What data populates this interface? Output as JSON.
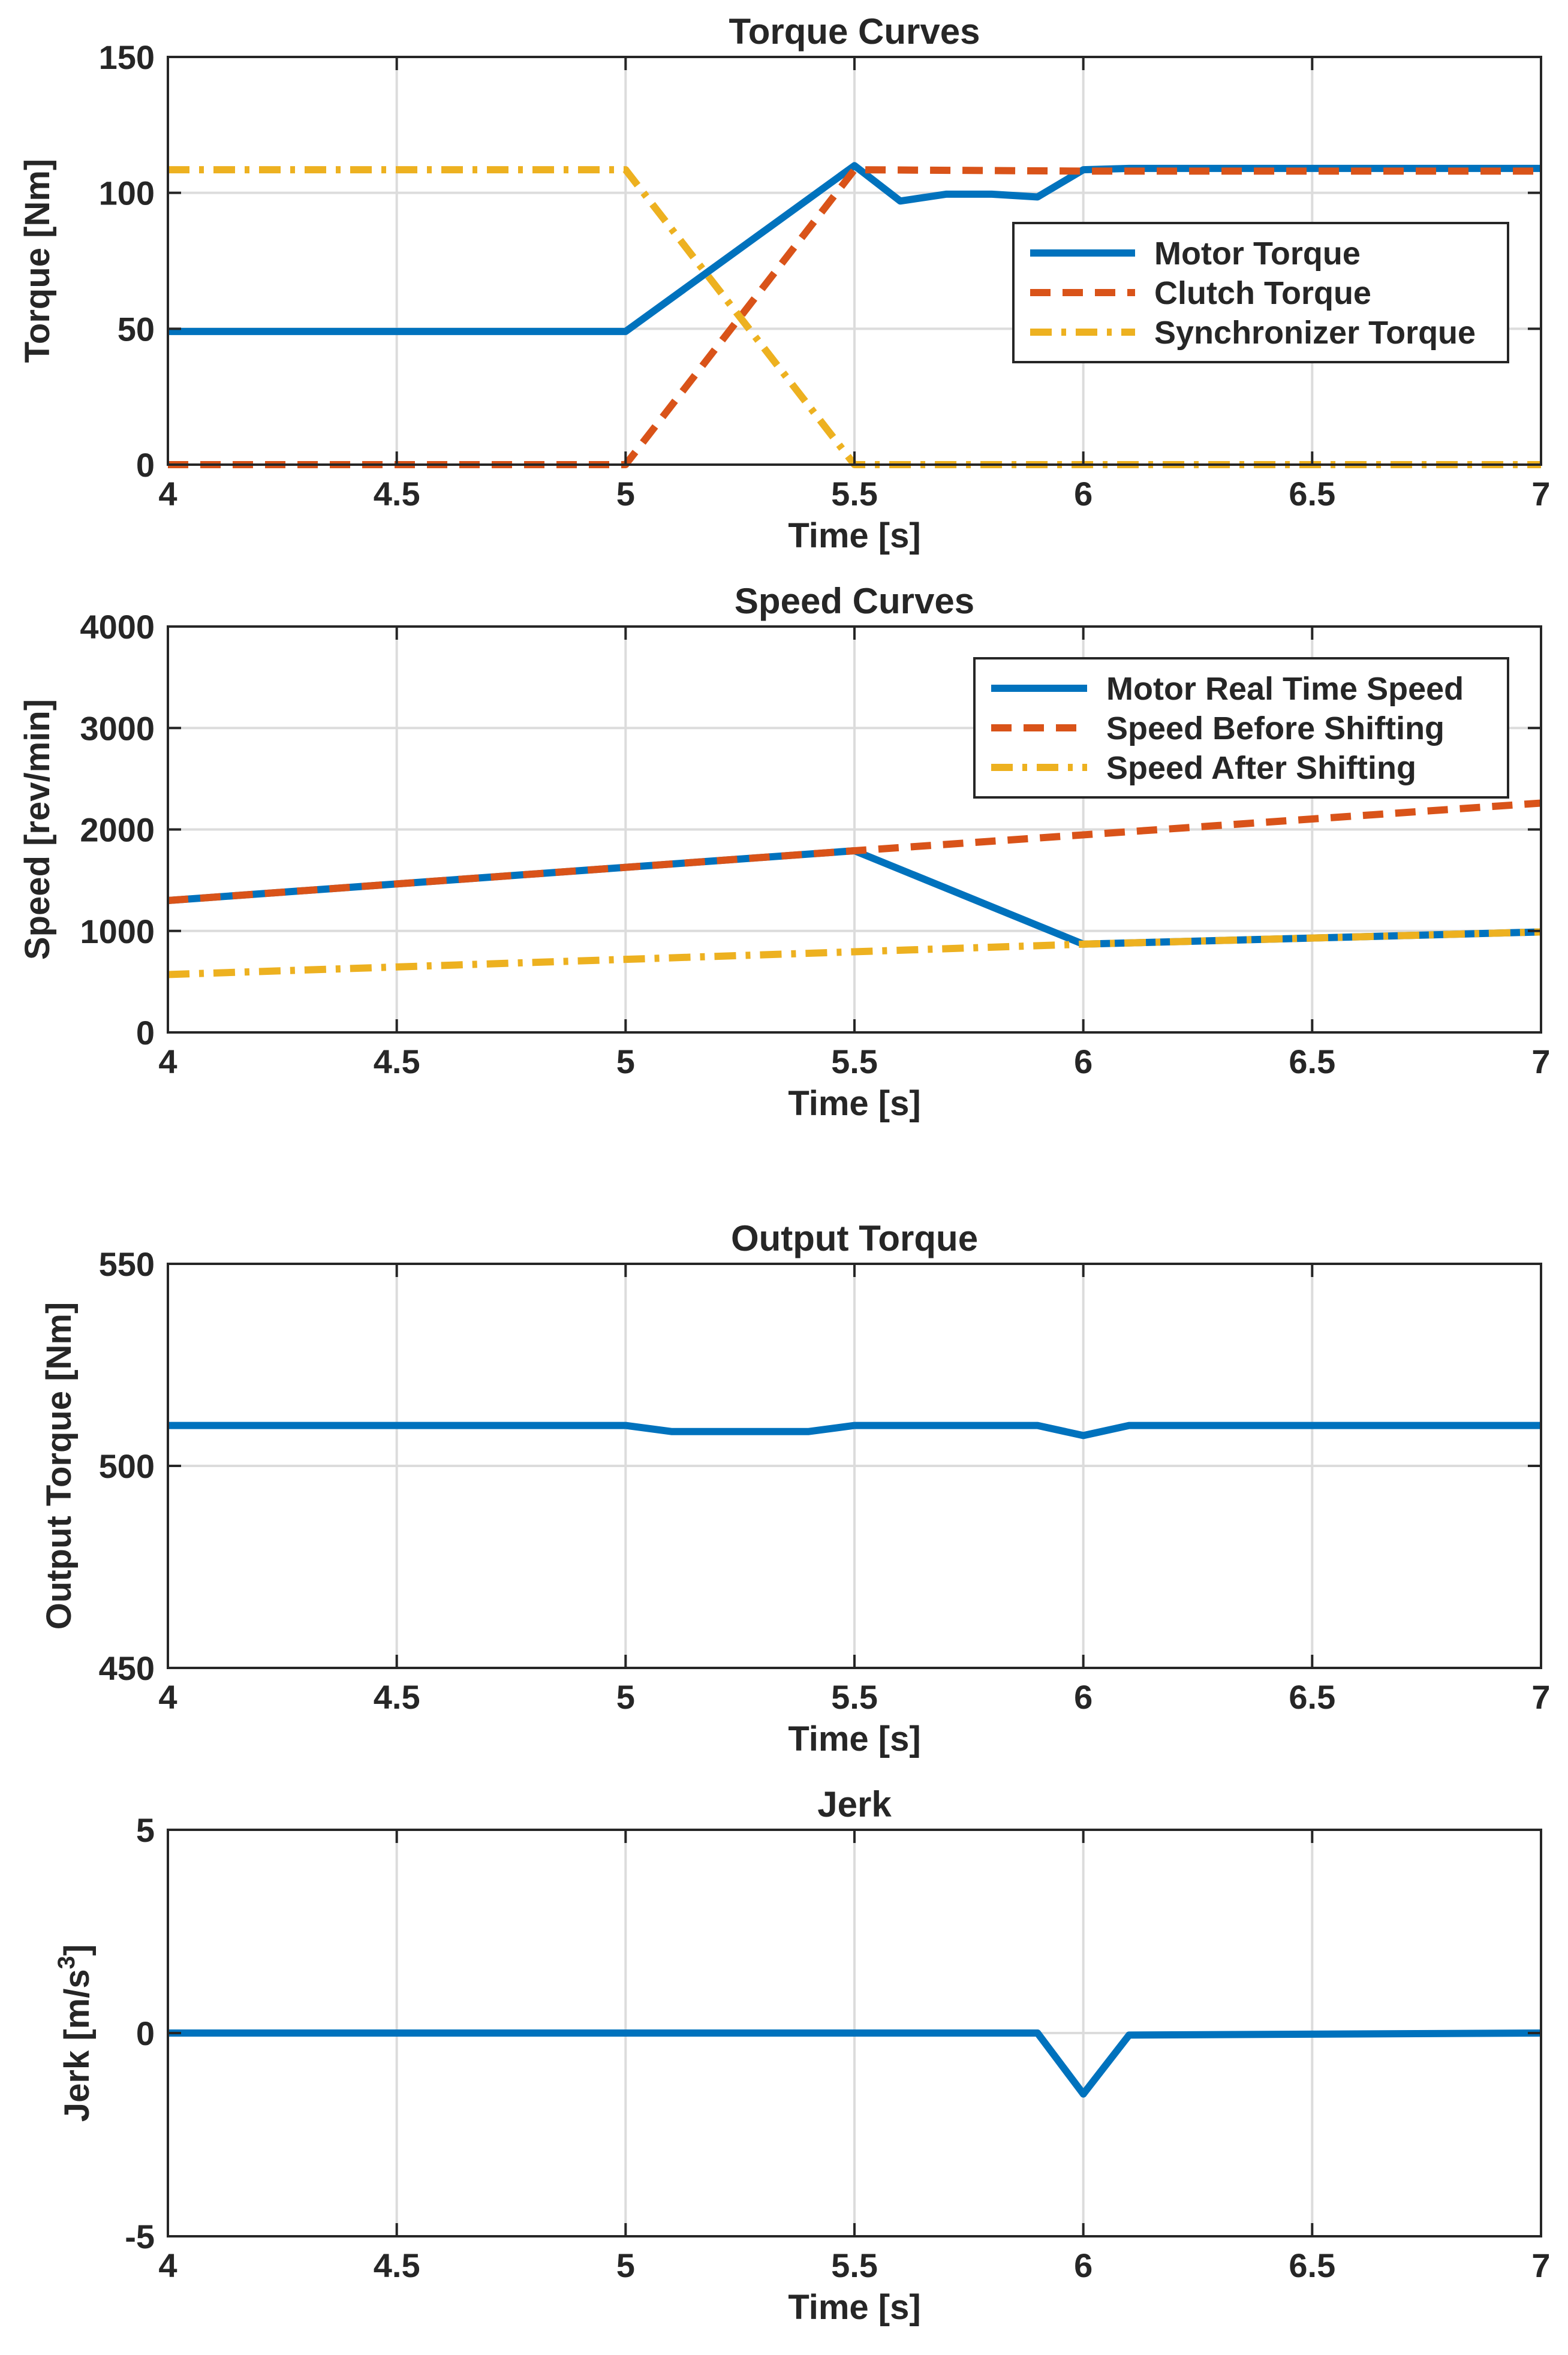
{
  "chart_data": [
    {
      "type": "line",
      "title": "Torque Curves",
      "xlabel": "Time [s]",
      "ylabel": "Torque [Nm]",
      "xlim": [
        4,
        7
      ],
      "ylim": [
        0,
        150
      ],
      "xticks": [
        "4",
        "4.5",
        "5",
        "5.5",
        "6",
        "6.5",
        "7"
      ],
      "yticks": [
        "0",
        "50",
        "100",
        "150"
      ],
      "legend_position": "right",
      "series": [
        {
          "name": "Motor Torque",
          "color": "#0072BD",
          "style": "solid",
          "x": [
            4,
            5,
            5.5,
            5.6,
            5.7,
            5.8,
            5.9,
            6,
            6.1,
            7
          ],
          "y": [
            49,
            49,
            110,
            97,
            99.5,
            99.5,
            98.5,
            108.5,
            109,
            109
          ]
        },
        {
          "name": "Clutch Torque",
          "color": "#D95319",
          "style": "dash",
          "x": [
            4,
            5,
            5.5,
            6,
            7
          ],
          "y": [
            0,
            0,
            108.5,
            108,
            108
          ]
        },
        {
          "name": "Synchronizer Torque",
          "color": "#EDB120",
          "style": "dashdot",
          "x": [
            4,
            5,
            5.5,
            7
          ],
          "y": [
            108.5,
            108.5,
            0,
            0
          ]
        }
      ]
    },
    {
      "type": "line",
      "title": "Speed Curves",
      "xlabel": "Time [s]",
      "ylabel": "Speed [rev/min]",
      "xlim": [
        4,
        7
      ],
      "ylim": [
        0,
        4000
      ],
      "xticks": [
        "4",
        "4.5",
        "5",
        "5.5",
        "6",
        "6.5",
        "7"
      ],
      "yticks": [
        "0",
        "1000",
        "2000",
        "3000",
        "4000"
      ],
      "legend_position": "top-right",
      "series": [
        {
          "name": "Motor Real Time Speed",
          "color": "#0072BD",
          "style": "solid",
          "x": [
            4,
            5.5,
            6,
            7
          ],
          "y": [
            1300,
            1790,
            870,
            990
          ]
        },
        {
          "name": "Speed Before Shifting",
          "color": "#D95319",
          "style": "dash",
          "x": [
            4,
            5.5,
            7
          ],
          "y": [
            1300,
            1790,
            2260
          ]
        },
        {
          "name": "Speed After Shifting",
          "color": "#EDB120",
          "style": "dashdot",
          "x": [
            4,
            6,
            7
          ],
          "y": [
            570,
            870,
            990
          ]
        }
      ]
    },
    {
      "type": "line",
      "title": "Output Torque",
      "xlabel": "Time [s]",
      "ylabel": "Output Torque [Nm]",
      "xlim": [
        4,
        7
      ],
      "ylim": [
        450,
        550
      ],
      "xticks": [
        "4",
        "4.5",
        "5",
        "5.5",
        "6",
        "6.5",
        "7"
      ],
      "yticks": [
        "450",
        "500",
        "550"
      ],
      "series": [
        {
          "name": "Output Torque",
          "color": "#0072BD",
          "style": "solid",
          "x": [
            4,
            5,
            5.1,
            5.4,
            5.5,
            5.9,
            6,
            6.1,
            7
          ],
          "y": [
            510,
            510,
            508.5,
            508.5,
            510,
            510,
            507.5,
            510,
            510
          ]
        }
      ]
    },
    {
      "type": "line",
      "title": "Jerk",
      "xlabel": "Time [s]",
      "ylabel": "Jerk [m/s",
      "ylabel_superscript": "3",
      "ylabel_suffix": "]",
      "xlim": [
        4,
        7
      ],
      "ylim": [
        -5,
        5
      ],
      "xticks": [
        "4",
        "4.5",
        "5",
        "5.5",
        "6",
        "6.5",
        "7"
      ],
      "yticks": [
        "-5",
        "0",
        "5"
      ],
      "series": [
        {
          "name": "Jerk",
          "color": "#0072BD",
          "style": "solid",
          "x": [
            4,
            5.9,
            6,
            6.1,
            7
          ],
          "y": [
            0,
            0,
            -1.5,
            -0.05,
            0
          ]
        }
      ]
    }
  ]
}
